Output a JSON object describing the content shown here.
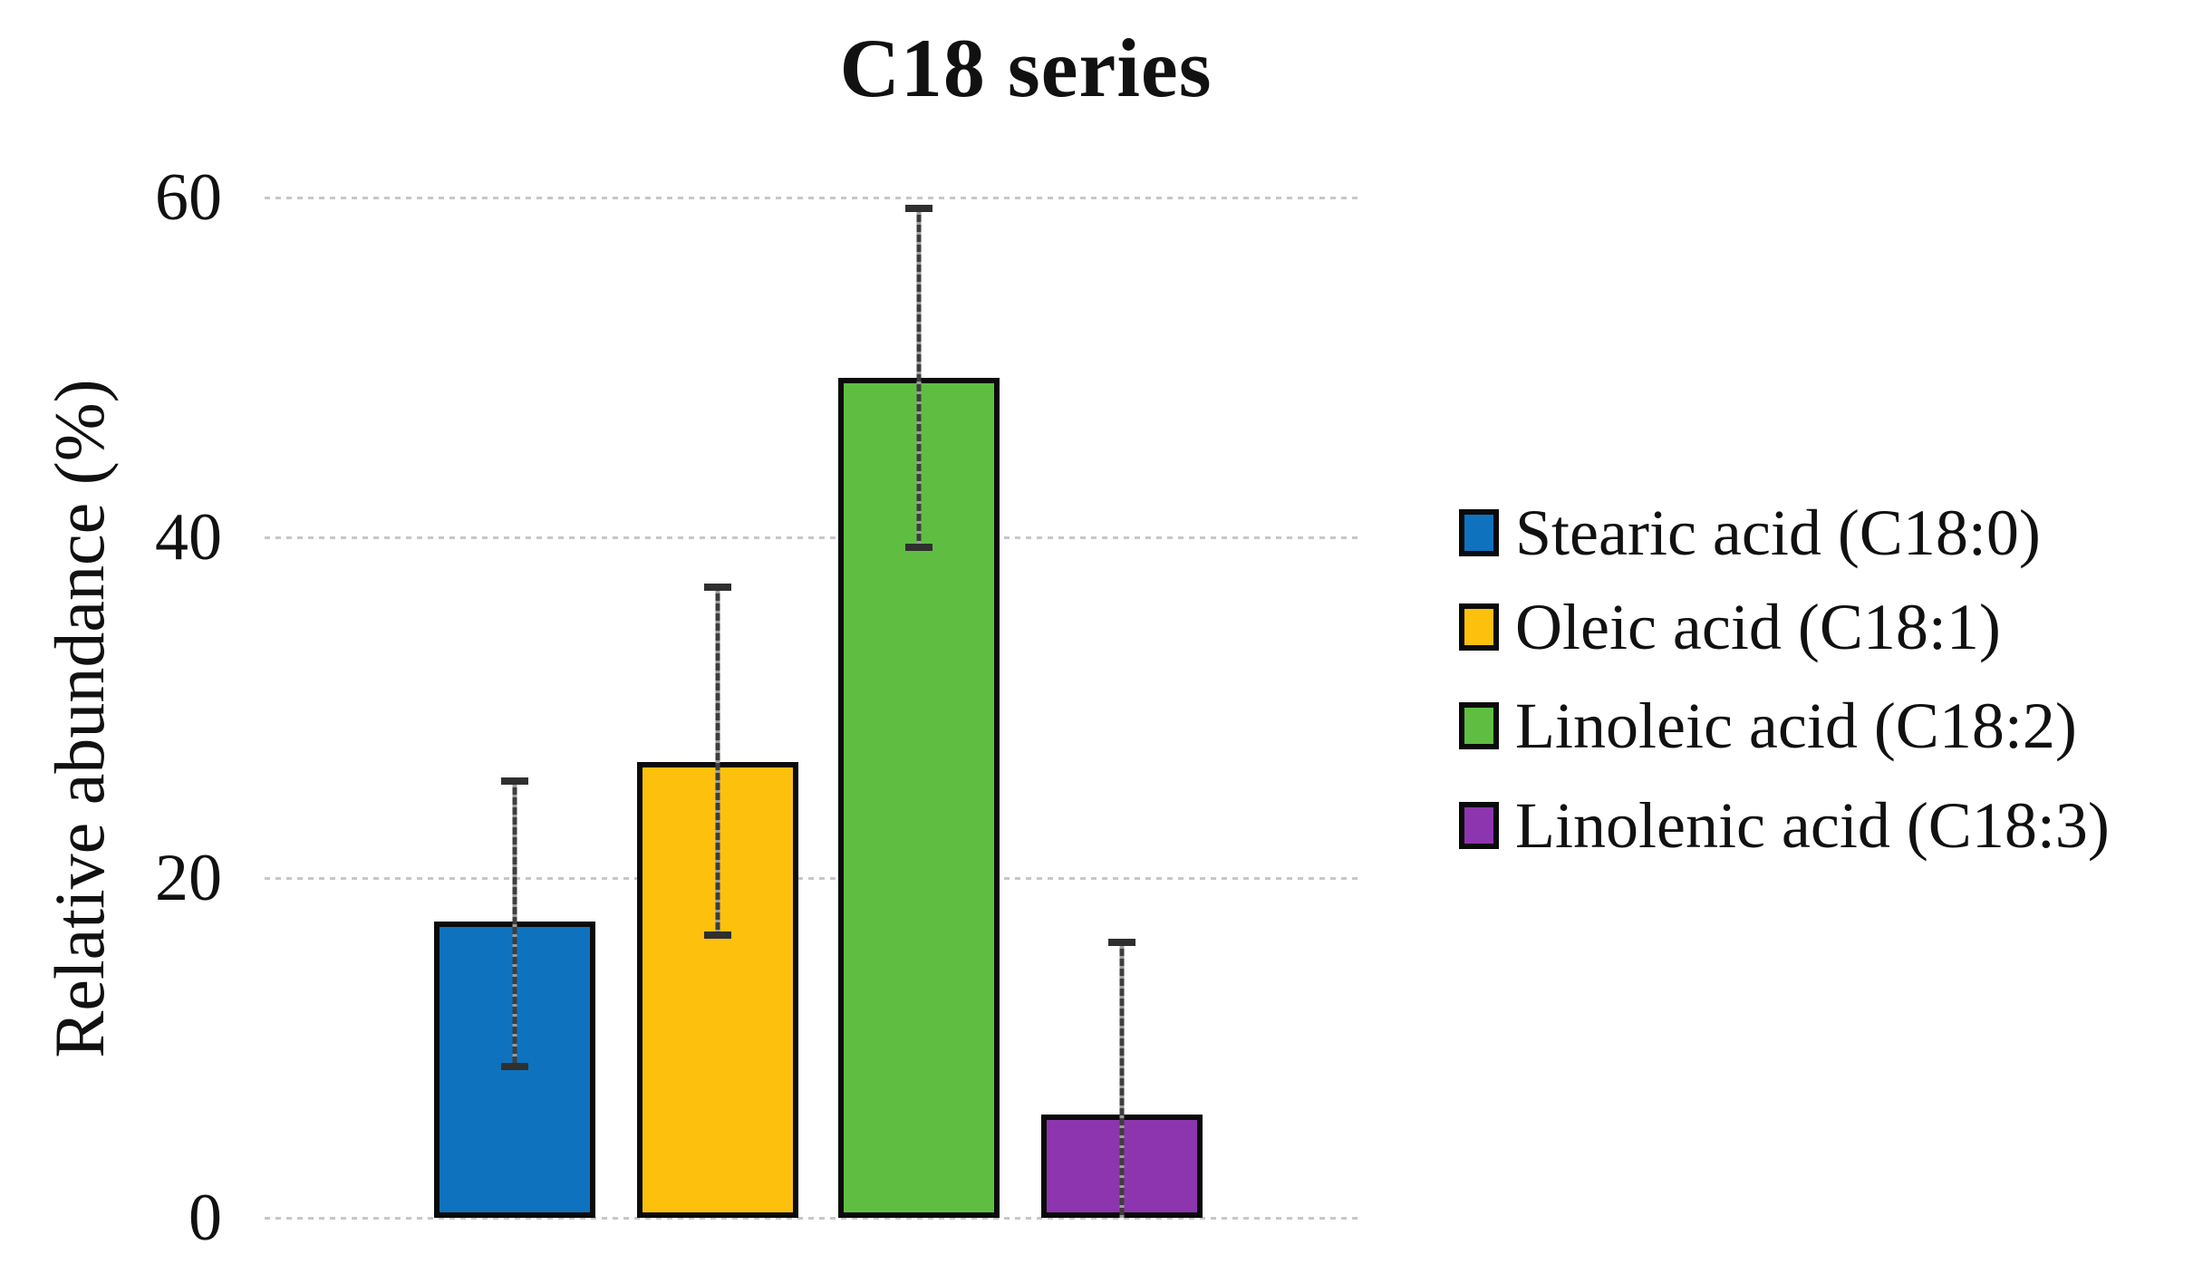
{
  "page": {
    "background_color": "#ffffff"
  },
  "chart_data": {
    "type": "bar",
    "title": "C18 series",
    "xlabel": "",
    "ylabel": "Relative abundance (%)",
    "ylim": [
      0,
      60
    ],
    "yticks": [
      0,
      20,
      40,
      60
    ],
    "grid": "horizontal-dotted",
    "categories": [
      "Stearic acid (C18:0)",
      "Oleic acid (C18:1)",
      "Linoleic acid (C18:2)",
      "Linolenic acid (C18:3)"
    ],
    "values": [
      17.4,
      26.8,
      49.4,
      6.1
    ],
    "error_low": [
      8.7,
      16.4,
      39.2,
      0
    ],
    "error_high": [
      25.9,
      37.3,
      59.6,
      16.4
    ],
    "error_cap_low_visible": [
      true,
      true,
      true,
      false
    ],
    "bar_colors": [
      "#0F72BE",
      "#FDC00D",
      "#5FBE41",
      "#8D35AE"
    ],
    "bar_border_color": "#0b0b0b",
    "error_bar_color": "#3e3e3e",
    "gridline_color": "#c7c7c7",
    "legend_position": "right",
    "legend": {
      "items": [
        {
          "label": "Stearic acid (C18:0)",
          "color": "#0F72BE"
        },
        {
          "label": "Oleic acid (C18:1)",
          "color": "#FDC00D"
        },
        {
          "label": "Linoleic acid (C18:2)",
          "color": "#5FBE41"
        },
        {
          "label": "Linolenic acid (C18:3)",
          "color": "#8D35AE"
        }
      ]
    }
  }
}
